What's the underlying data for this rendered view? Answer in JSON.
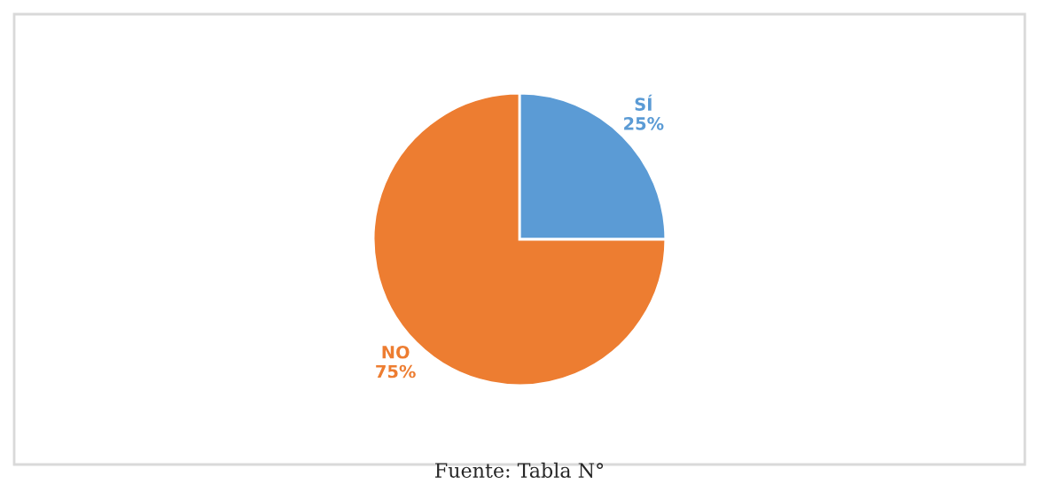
{
  "chart_data": {
    "type": "pie",
    "categories": [
      "SÍ",
      "NO"
    ],
    "values": [
      25,
      75
    ],
    "colors": [
      "#5b9bd5",
      "#ed7d31"
    ],
    "value_labels": [
      "25%",
      "75%"
    ],
    "annotations": [
      "Fuente: Tabla N°"
    ]
  }
}
